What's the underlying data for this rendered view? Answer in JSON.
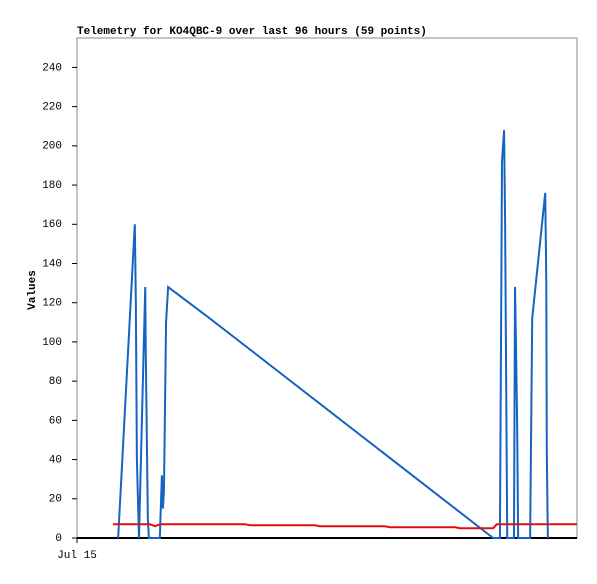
{
  "chart_data": {
    "type": "line",
    "title": "Telemetry for KO4QBC-9 over last 96 hours (59 points)",
    "y_label": "Values",
    "xlim": [
      0,
      96
    ],
    "xticks": [
      {
        "value": 0,
        "label": "Jul 15"
      }
    ],
    "ylim": [
      0,
      255
    ],
    "yticks": [
      0,
      20,
      40,
      60,
      80,
      100,
      120,
      140,
      160,
      180,
      200,
      220,
      240
    ],
    "series": [
      {
        "color": "#1565c0",
        "x": [
          7.9,
          11.1,
          11.3,
          11.5,
          11.9,
          13.1,
          13.2,
          13.6,
          13.8,
          15.9,
          16.3,
          16.5,
          16.7,
          17.1,
          17.5,
          25.5,
          79.9,
          81.2,
          81.6,
          82.0,
          82.2,
          82.6,
          83.9,
          84.1,
          84.3,
          84.5,
          84.7,
          87.0,
          87.4,
          89.9,
          90.1,
          90.2,
          90.4
        ],
        "values": [
          0,
          160,
          120,
          40,
          0,
          128,
          96,
          10,
          0,
          0,
          32,
          15,
          25,
          110,
          128,
          112,
          0,
          0,
          192,
          208,
          160,
          0,
          0,
          128,
          96,
          60,
          0,
          0,
          112,
          176,
          132,
          45,
          0
        ]
      },
      {
        "color": "#e01010",
        "x": [
          6.9,
          14.0,
          15.0,
          15.9,
          32.3,
          33.2,
          45.7,
          46.6,
          59.1,
          60.1,
          72.6,
          73.5,
          79.9,
          80.6,
          96
        ],
        "values": [
          7,
          7,
          6,
          7,
          7,
          6.5,
          6.5,
          6,
          6,
          5.5,
          5.5,
          5,
          5,
          7,
          7
        ]
      }
    ]
  }
}
